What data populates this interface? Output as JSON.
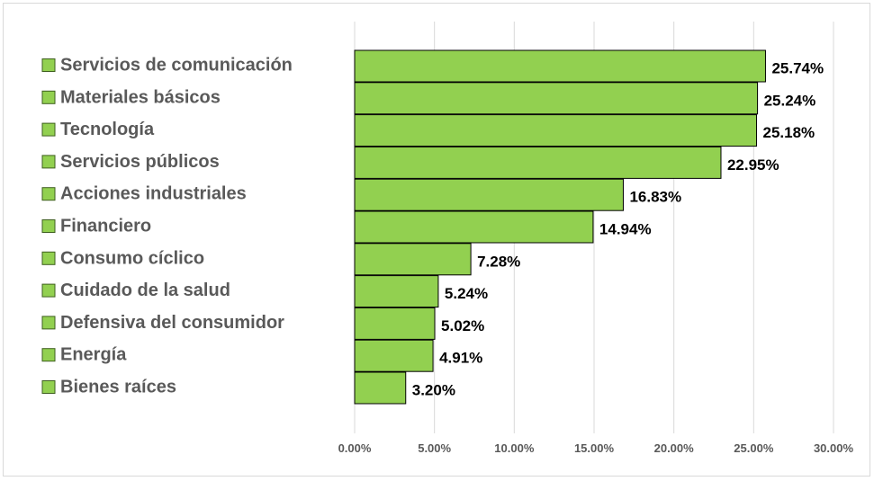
{
  "chart_data": {
    "type": "bar",
    "orientation": "horizontal",
    "categories": [
      "Servicios de comunicación",
      "Materiales básicos",
      "Tecnología",
      "Servicios públicos",
      "Acciones industriales",
      "Financiero",
      "Consumo cíclico",
      "Cuidado de la salud",
      "Defensiva del consumidor",
      "Energía",
      "Bienes raíces"
    ],
    "values": [
      25.74,
      25.24,
      25.18,
      22.95,
      16.83,
      14.94,
      7.28,
      5.24,
      5.02,
      4.91,
      3.2
    ],
    "value_labels": [
      "25.74%",
      "25.24%",
      "25.18%",
      "22.95%",
      "16.83%",
      "14.94%",
      "7.28%",
      "5.24%",
      "5.02%",
      "4.91%",
      "3.20%"
    ],
    "xlim": [
      0,
      30
    ],
    "x_ticks": [
      0,
      5,
      10,
      15,
      20,
      25,
      30
    ],
    "x_tick_labels": [
      "0.00%",
      "5.00%",
      "10.00%",
      "15.00%",
      "20.00%",
      "25.00%",
      "30.00%"
    ],
    "grid": "vertical",
    "legend": "left",
    "title": "",
    "xlabel": "",
    "ylabel": "",
    "colors": {
      "bar_fill": "#92d050",
      "bar_stroke": "#000000",
      "grid": "#d9d9d9",
      "category_text": "#595959",
      "value_text": "#000000",
      "tick_text": "#595959"
    }
  }
}
